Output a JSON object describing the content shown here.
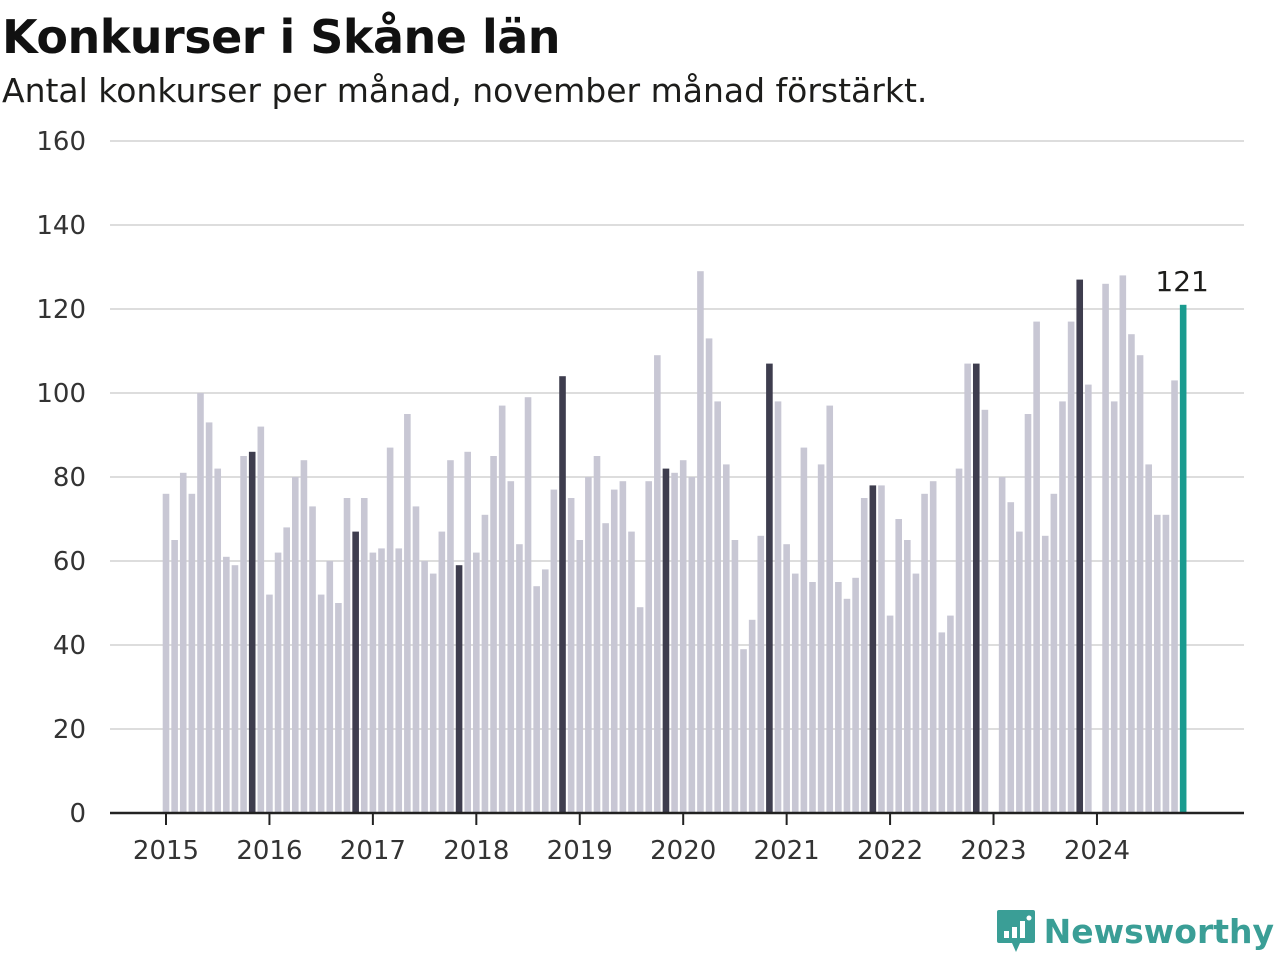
{
  "header": {
    "title": "Konkurser i Skåne län",
    "subtitle": "Antal konkurser per månad, november månad förstärkt."
  },
  "brand": {
    "name": "Newsworthy",
    "icon": "newsworthy-logo-icon",
    "color": "#3a9e96"
  },
  "colors": {
    "bar": "#c8c7d4",
    "november": "#3e3d4e",
    "latest": "#1a9b8f",
    "grid": "#dddddd",
    "axis": "#222222"
  },
  "chart_data": {
    "type": "bar",
    "title": "Konkurser i Skåne län",
    "subtitle": "Antal konkurser per månad, november månad förstärkt.",
    "xlabel": "",
    "ylabel": "",
    "ylim": [
      0,
      160
    ],
    "y_ticks": [
      0,
      20,
      40,
      60,
      80,
      100,
      120,
      140,
      160
    ],
    "x_tick_labels": [
      "2015",
      "2016",
      "2017",
      "2018",
      "2019",
      "2020",
      "2021",
      "2022",
      "2023",
      "2024"
    ],
    "grid": true,
    "start": "2015-01",
    "highlight": "november",
    "series": [
      {
        "values": [
          76,
          65,
          81,
          76,
          100,
          93,
          82,
          61,
          59,
          85,
          86,
          92,
          52,
          62,
          68,
          80,
          84,
          73,
          52,
          60,
          50,
          75,
          67,
          75,
          62,
          63,
          87,
          63,
          95,
          73,
          60,
          57,
          67,
          84,
          59,
          86,
          62,
          71,
          85,
          97,
          79,
          64,
          99,
          54,
          58,
          77,
          104,
          75,
          65,
          80,
          85,
          69,
          77,
          79,
          67,
          49,
          79,
          109,
          82,
          81,
          84,
          80,
          129,
          113,
          98,
          83,
          65,
          39,
          46,
          66,
          107,
          98,
          64,
          57,
          87,
          55,
          83,
          97,
          55,
          51,
          56,
          75,
          78,
          78,
          47,
          70,
          65,
          57,
          76,
          79,
          43,
          47,
          82,
          107,
          107,
          96,
          null,
          80,
          74,
          67,
          95,
          117,
          66,
          76,
          98,
          117,
          127,
          102,
          null,
          126,
          98,
          128,
          114,
          109,
          83,
          71,
          71,
          103,
          121
        ]
      }
    ],
    "annotations": [
      {
        "month": "2024-11",
        "text": "121"
      }
    ]
  }
}
